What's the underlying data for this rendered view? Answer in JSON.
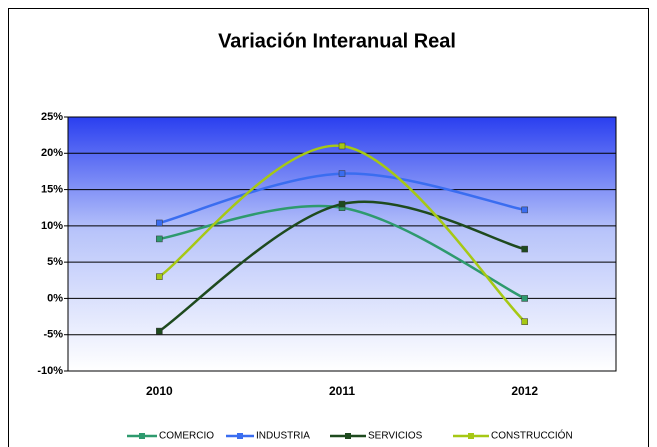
{
  "chart_data": {
    "type": "line",
    "title": "Variación Interanual Real",
    "categories": [
      "2010",
      "2011",
      "2012"
    ],
    "series": [
      {
        "name": "COMERCIO",
        "color": "#2e9a6e",
        "values": [
          8.2,
          12.5,
          0
        ]
      },
      {
        "name": "INDUSTRIA",
        "color": "#3a6df0",
        "values": [
          10.4,
          17.2,
          12.2
        ]
      },
      {
        "name": "SERVICIOS",
        "color": "#1e4a1e",
        "values": [
          -4.5,
          13,
          6.8
        ]
      },
      {
        "name": "CONSTRUCCIÓN",
        "color": "#a6c814",
        "values": [
          3,
          21,
          -3.2
        ]
      }
    ],
    "ylim": [
      -10,
      25
    ],
    "yticks": [
      {
        "value": -10,
        "label": "-10%"
      },
      {
        "value": -5,
        "label": "-5%"
      },
      {
        "value": 0,
        "label": "0%"
      },
      {
        "value": 5,
        "label": "5%"
      },
      {
        "value": 10,
        "label": "10%"
      },
      {
        "value": 15,
        "label": "15%"
      },
      {
        "value": 20,
        "label": "20%"
      },
      {
        "value": 25,
        "label": "25%"
      }
    ],
    "grid": true,
    "legend": "bottom"
  }
}
